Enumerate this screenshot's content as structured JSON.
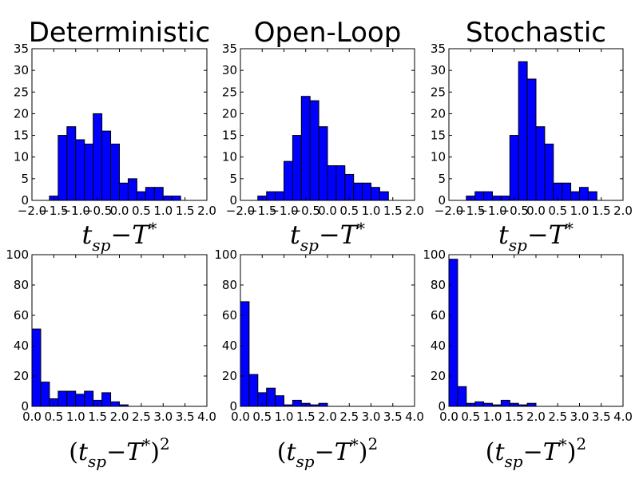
{
  "colors": {
    "bar_fill": "#0000ff",
    "bar_edge": "#000000"
  },
  "chart_data": [
    {
      "type": "bar",
      "panel": "top-left",
      "title": "Deterministic",
      "xlabel": {
        "base": "t",
        "sub": "sp",
        "minus": "−",
        "T": "T",
        "sup": "*"
      },
      "xlim": [
        -2.0,
        2.0
      ],
      "ylim": [
        0,
        35
      ],
      "xticks": [
        "−2.0",
        "−1.5",
        "−1.0",
        "−0.5",
        "0.0",
        "0.5",
        "1.0",
        "1.5",
        "2.0"
      ],
      "xtick_values": [
        -2.0,
        -1.5,
        -1.0,
        -0.5,
        0.0,
        0.5,
        1.0,
        1.5,
        2.0
      ],
      "yticks": [
        "0",
        "5",
        "10",
        "15",
        "20",
        "25",
        "30",
        "35"
      ],
      "ytick_values": [
        0,
        5,
        10,
        15,
        20,
        25,
        30,
        35
      ],
      "bin_start": -1.6,
      "bin_width": 0.2,
      "values": [
        1,
        15,
        17,
        14,
        13,
        20,
        16,
        13,
        4,
        5,
        2,
        3,
        3,
        1,
        1
      ]
    },
    {
      "type": "bar",
      "panel": "top-middle",
      "title": "Open-Loop",
      "xlabel": {
        "base": "t",
        "sub": "sp",
        "minus": "−",
        "T": "T",
        "sup": "*"
      },
      "xlim": [
        -2.0,
        2.0
      ],
      "ylim": [
        0,
        35
      ],
      "xticks": [
        "−2.0",
        "−1.5",
        "−1.0",
        "−0.5",
        "0.0",
        "0.5",
        "1.0",
        "1.5",
        "2.0"
      ],
      "xtick_values": [
        -2.0,
        -1.5,
        -1.0,
        -0.5,
        0.0,
        0.5,
        1.0,
        1.5,
        2.0
      ],
      "yticks": [
        "0",
        "5",
        "10",
        "15",
        "20",
        "25",
        "30",
        "35"
      ],
      "ytick_values": [
        0,
        5,
        10,
        15,
        20,
        25,
        30,
        35
      ],
      "bin_start": -1.6,
      "bin_width": 0.2,
      "values": [
        1,
        2,
        2,
        9,
        15,
        24,
        23,
        17,
        8,
        8,
        6,
        4,
        4,
        3,
        2
      ]
    },
    {
      "type": "bar",
      "panel": "top-right",
      "title": "Stochastic",
      "xlabel": {
        "base": "t",
        "sub": "sp",
        "minus": "−",
        "T": "T",
        "sup": "*"
      },
      "xlim": [
        -2.0,
        2.0
      ],
      "ylim": [
        0,
        35
      ],
      "xticks": [
        "−2.0",
        "−1.5",
        "−1.0",
        "−0.5",
        "0.0",
        "0.5",
        "1.0",
        "1.5",
        "2.0"
      ],
      "xtick_values": [
        -2.0,
        -1.5,
        -1.0,
        -0.5,
        0.0,
        0.5,
        1.0,
        1.5,
        2.0
      ],
      "yticks": [
        "0",
        "5",
        "10",
        "15",
        "20",
        "25",
        "30",
        "35"
      ],
      "ytick_values": [
        0,
        5,
        10,
        15,
        20,
        25,
        30,
        35
      ],
      "bin_start": -1.6,
      "bin_width": 0.2,
      "values": [
        1,
        2,
        2,
        1,
        1,
        15,
        32,
        28,
        17,
        13,
        4,
        4,
        2,
        3,
        2
      ]
    },
    {
      "type": "bar",
      "panel": "bottom-left",
      "title": "",
      "xlabel": {
        "open": "(",
        "base": "t",
        "sub": "sp",
        "minus": "−",
        "T": "T",
        "sup": "*",
        "close": ")",
        "pow": "2"
      },
      "xlim": [
        0.0,
        4.0
      ],
      "ylim": [
        0,
        100
      ],
      "xticks": [
        "0.0",
        "0.5",
        "1.0",
        "1.5",
        "2.0",
        "2.5",
        "3.0",
        "3.5",
        "4.0"
      ],
      "xtick_values": [
        0.0,
        0.5,
        1.0,
        1.5,
        2.0,
        2.5,
        3.0,
        3.5,
        4.0
      ],
      "yticks": [
        "0",
        "20",
        "40",
        "60",
        "80",
        "100"
      ],
      "ytick_values": [
        0,
        20,
        40,
        60,
        80,
        100
      ],
      "bin_start": 0.0,
      "bin_width": 0.2,
      "values": [
        51,
        16,
        5,
        10,
        10,
        8,
        10,
        4,
        9,
        3,
        1
      ]
    },
    {
      "type": "bar",
      "panel": "bottom-middle",
      "title": "",
      "xlabel": {
        "open": "(",
        "base": "t",
        "sub": "sp",
        "minus": "−",
        "T": "T",
        "sup": "*",
        "close": ")",
        "pow": "2"
      },
      "xlim": [
        0.0,
        4.0
      ],
      "ylim": [
        0,
        100
      ],
      "xticks": [
        "0.0",
        "0.5",
        "1.0",
        "1.5",
        "2.0",
        "2.5",
        "3.0",
        "3.5",
        "4.0"
      ],
      "xtick_values": [
        0.0,
        0.5,
        1.0,
        1.5,
        2.0,
        2.5,
        3.0,
        3.5,
        4.0
      ],
      "yticks": [
        "0",
        "20",
        "40",
        "60",
        "80",
        "100"
      ],
      "ytick_values": [
        0,
        20,
        40,
        60,
        80,
        100
      ],
      "bin_start": 0.0,
      "bin_width": 0.2,
      "values": [
        69,
        21,
        9,
        12,
        7,
        1,
        4,
        2,
        1,
        2
      ]
    },
    {
      "type": "bar",
      "panel": "bottom-right",
      "title": "",
      "xlabel": {
        "open": "(",
        "base": "t",
        "sub": "sp",
        "minus": "−",
        "T": "T",
        "sup": "*",
        "close": ")",
        "pow": "2"
      },
      "xlim": [
        0.0,
        4.0
      ],
      "ylim": [
        0,
        100
      ],
      "xticks": [
        "0.0",
        "0.5",
        "1.0",
        "1.5",
        "2.0",
        "2.5",
        "3.0",
        "3.5",
        "4.0"
      ],
      "xtick_values": [
        0.0,
        0.5,
        1.0,
        1.5,
        2.0,
        2.5,
        3.0,
        3.5,
        4.0
      ],
      "yticks": [
        "0",
        "20",
        "40",
        "60",
        "80",
        "100"
      ],
      "ytick_values": [
        0,
        20,
        40,
        60,
        80,
        100
      ],
      "bin_start": 0.0,
      "bin_width": 0.2,
      "values": [
        97,
        13,
        2,
        3,
        2,
        1,
        4,
        2,
        1,
        2
      ]
    }
  ]
}
